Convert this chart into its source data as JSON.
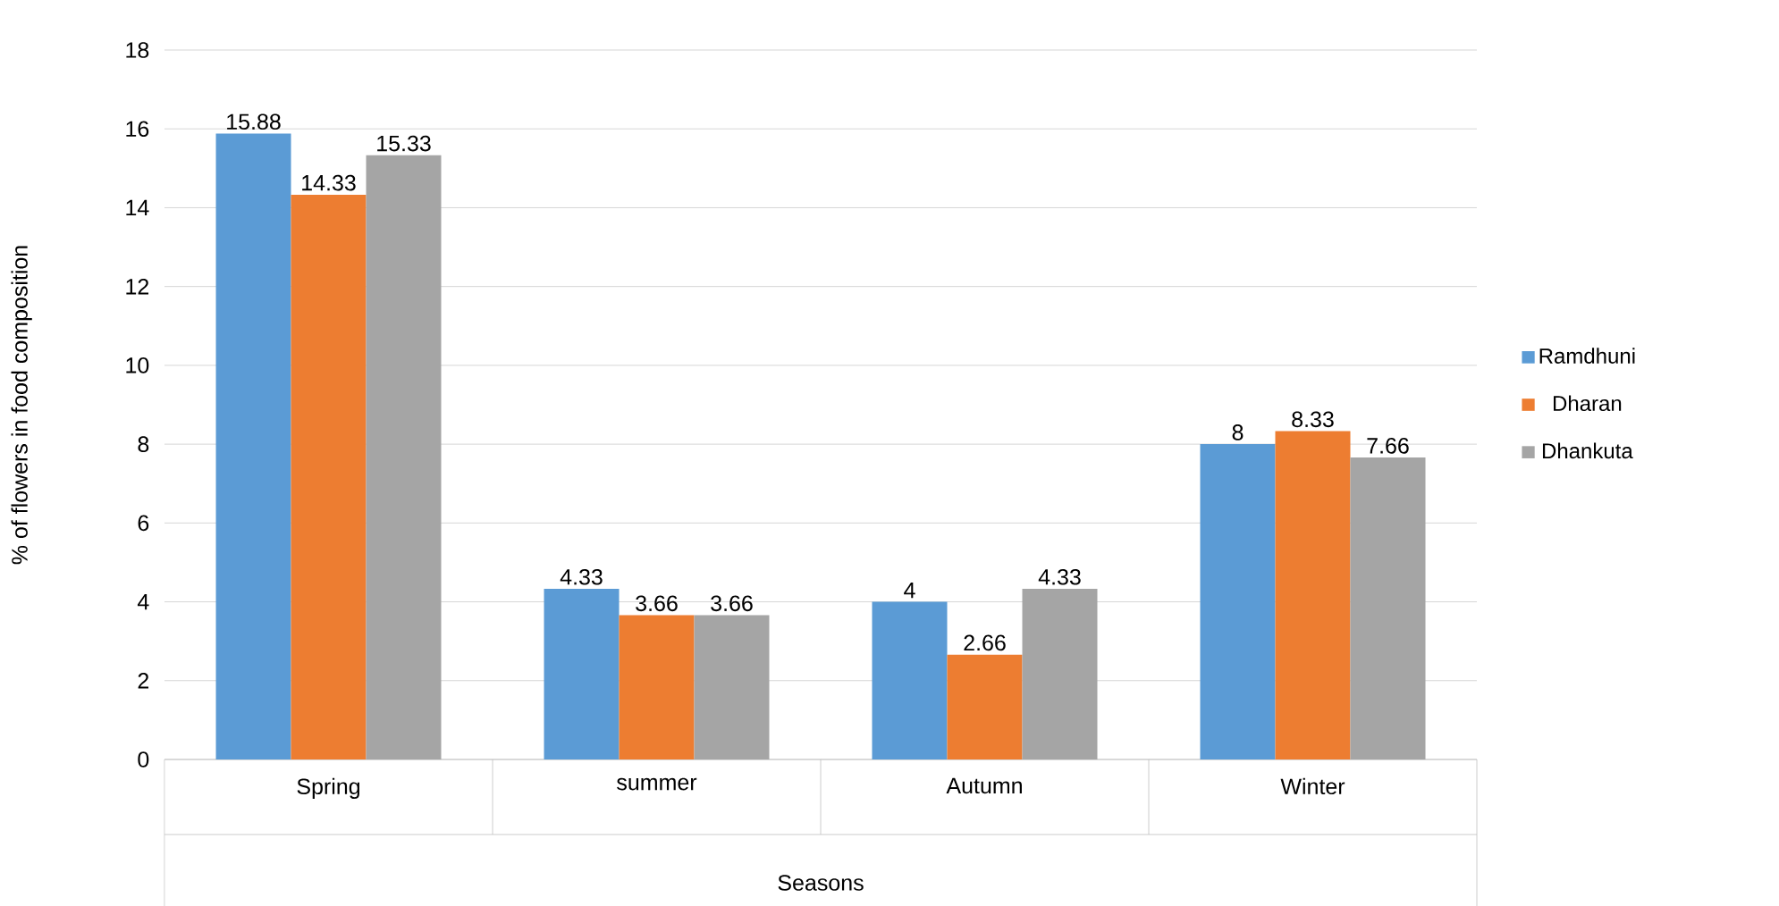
{
  "chart_data": {
    "type": "bar",
    "xlabel": "Seasons",
    "ylabel": "% of flowers in food composition",
    "categories": [
      "Spring",
      "summer",
      "Autumn",
      "Winter"
    ],
    "series": [
      {
        "name": "Ramdhuni",
        "color": "#5b9bd5",
        "values": [
          15.88,
          4.33,
          4,
          8
        ]
      },
      {
        "name": "Dharan",
        "color": "#ed7d31",
        "values": [
          14.33,
          3.66,
          2.66,
          8.33
        ]
      },
      {
        "name": "Dhankuta",
        "color": "#a5a5a5",
        "values": [
          15.33,
          3.66,
          4.33,
          7.66
        ]
      }
    ],
    "ylim": [
      0,
      18
    ],
    "yticks": [
      0,
      2,
      4,
      6,
      8,
      10,
      12,
      14,
      16,
      18
    ],
    "grid": "y",
    "legend": "right",
    "data_labels": true
  }
}
